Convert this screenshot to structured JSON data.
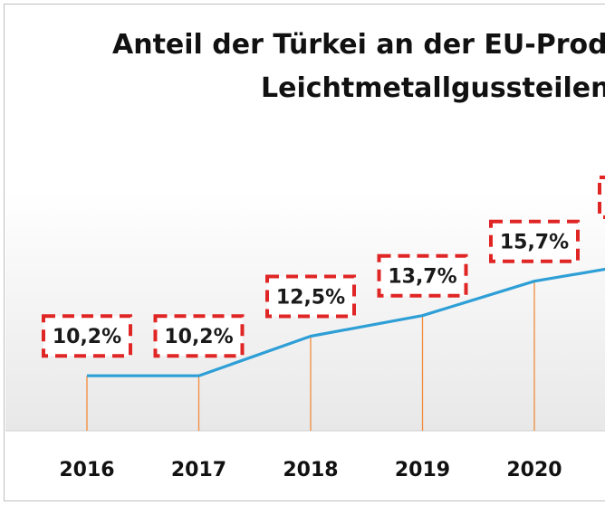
{
  "chart_data": {
    "type": "line",
    "title_line1": "Anteil der Türkei an der EU-Produkt",
    "title_line2": "Leichtmetallgussteilen",
    "categories": [
      "2016",
      "2017",
      "2018",
      "2019",
      "2020"
    ],
    "values": [
      10.2,
      10.2,
      12.5,
      13.7,
      15.7
    ],
    "value_labels": [
      "10,2%",
      "10,2%",
      "12,5%",
      "13,7%",
      "15,7%"
    ],
    "ylim": [
      7,
      21
    ],
    "xlabel": "",
    "ylabel": "",
    "grid": false
  },
  "colors": {
    "line": "#2e9fd6",
    "drop_lines": "#f28b3c",
    "label_border": "#e02525",
    "plot_band_top": "#ffffff",
    "plot_band_bottom": "#e8e8e8"
  }
}
